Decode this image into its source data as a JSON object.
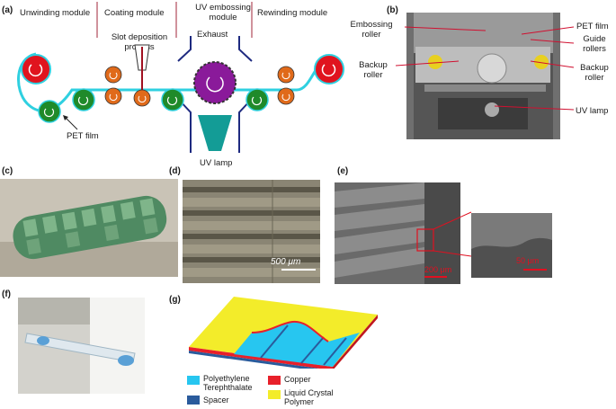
{
  "panel_a": {
    "letter": "(a)",
    "modules": [
      "Unwinding module",
      "Coating module",
      "UV embossing module",
      "Rewinding module"
    ],
    "slot_label": "Slot deposition process",
    "exhaust": "Exhaust",
    "pet_film": "PET film",
    "uv_lamp": "UV lamp"
  },
  "panel_b": {
    "letter": "(b)",
    "embossing_roller": "Embossing roller",
    "backup_roller_left": "Backup roller",
    "pet_film": "PET film",
    "guide_rollers": "Guide rollers",
    "backup_roller_right": "Backup roller",
    "uv_lamp": "UV lamp"
  },
  "panel_c": {
    "letter": "(c)"
  },
  "panel_d": {
    "letter": "(d)",
    "scale": "500 μm"
  },
  "panel_e": {
    "letter": "(e)",
    "scale_main": "200 μm",
    "scale_inset": "50 μm"
  },
  "panel_f": {
    "letter": "(f)"
  },
  "panel_g": {
    "letter": "(g)",
    "legend": [
      {
        "label": "Polyethylene Terephthalate",
        "color": "#27c6f0"
      },
      {
        "label": "Copper",
        "color": "#e8202a"
      },
      {
        "label": "Spacer",
        "color": "#2a5b9c"
      },
      {
        "label": "Liquid Crystal Polymer",
        "color": "#f3ec2a"
      }
    ]
  },
  "colors": {
    "cyan": "#2fd0e0",
    "red_roller": "#e0141e",
    "green_roller": "#1f8a2a",
    "orange_roller": "#e06a1a",
    "purple": "#8a1a9a",
    "teal_lamp": "#139c96"
  }
}
